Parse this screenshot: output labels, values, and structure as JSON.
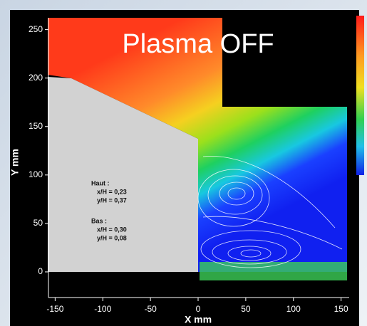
{
  "chart_data": {
    "type": "flowfield",
    "title": "Plasma OFF",
    "x_label": "X mm",
    "y_label": "Y mm",
    "annotations": [
      "Haut :",
      "x/H = 0,23",
      "y/H = 0,37",
      "Bas :",
      "x/H = 0,30",
      "y/H = 0,08"
    ],
    "xlim": [
      -160,
      160
    ],
    "ylim": [
      -25,
      260
    ],
    "xticks": [
      -150,
      -100,
      -50,
      0,
      50,
      100,
      150
    ],
    "yticks": [
      0,
      50,
      100,
      150,
      200,
      250
    ]
  }
}
